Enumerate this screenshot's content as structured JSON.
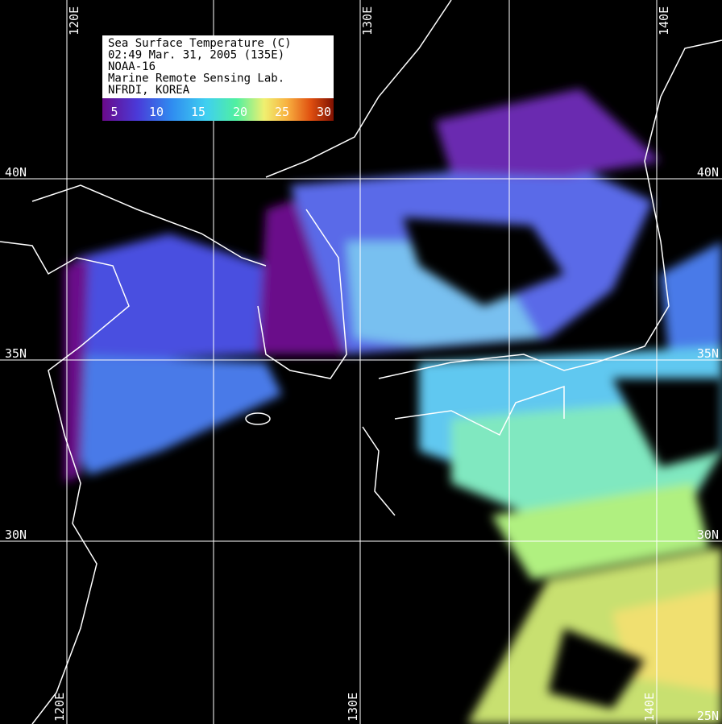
{
  "legend": {
    "lines": [
      "Sea Surface Temperature (C)",
      "02:49  Mar. 31, 2005 (135E)",
      "NOAA-16",
      "Marine Remote Sensing Lab.",
      "NFRDI, KOREA"
    ],
    "scale": [
      5,
      10,
      15,
      20,
      25,
      30
    ]
  },
  "grid_labels": {
    "longitude_top": [
      "120E",
      "130E",
      "140E"
    ],
    "longitude_bottom": [
      "120E",
      "130E",
      "140E"
    ],
    "latitude_left": [
      "40N",
      "35N",
      "30N"
    ],
    "latitude_right": [
      "40N",
      "35N",
      "30N",
      "25N"
    ]
  }
}
